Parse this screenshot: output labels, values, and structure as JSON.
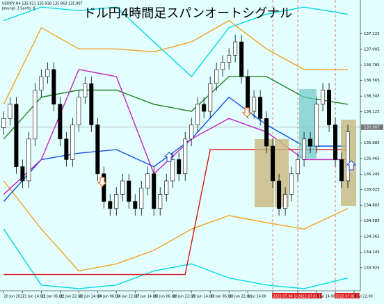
{
  "chart_data": {
    "type": "candlestick",
    "title": "ドル円4時間足スパンオートシグナル",
    "header_lines": [
      "USDJPY,H4 135.911 135.938 135.863 135.907",
      "Jakungi: 3 SanYo: 8"
    ],
    "background": "#e4ffff",
    "up_color": "#ffffff",
    "down_color": "#000000",
    "xlim": [
      -0.6,
      57
    ],
    "ylim": [
      133.6,
      137.7
    ],
    "yticks": [
      137.225,
      137.005,
      136.785,
      136.565,
      136.345,
      136.125,
      135.685,
      135.465,
      135.245,
      135.025,
      134.805,
      134.585,
      134.365,
      134.145,
      133.925
    ],
    "current_price": 135.907,
    "xticks": [
      {
        "value": 0,
        "label": "20 Jun 2022"
      },
      {
        "value": 3,
        "label": "21 Jun 14:00"
      },
      {
        "value": 6,
        "label": "22 Jun 06:00"
      },
      {
        "value": 9,
        "label": "22 Jun 22:00"
      },
      {
        "value": 12,
        "label": "23 Jun 14:00"
      },
      {
        "value": 15,
        "label": "24 Jun 06:00"
      },
      {
        "value": 18,
        "label": "24 Jun 22:00"
      },
      {
        "value": 21,
        "label": "27 Jun 14:00"
      },
      {
        "value": 24,
        "label": "28 Jun 06:00"
      },
      {
        "value": 27,
        "label": "28 Jun 22:00"
      },
      {
        "value": 30,
        "label": "29 Jun 14:00"
      },
      {
        "value": 33,
        "label": "30 Jun 06:00"
      },
      {
        "value": 36,
        "label": "30 Jun 22:00"
      },
      {
        "value": 39,
        "label": "1 Jul 14:00"
      },
      {
        "value": 43,
        "label": "2022.07.04 14:00",
        "highlight": true
      },
      {
        "value": 47,
        "label": "2022.07.05 18:00",
        "highlight": true
      },
      {
        "value": 50,
        "label": "5 Jul 14:00"
      },
      {
        "value": 53,
        "label": "2022.07.06 18:00",
        "highlight": true
      },
      {
        "value": 56,
        "label": "6 Jul 22:00"
      }
    ],
    "open": [
      135.9,
      136.03,
      136.23,
      135.35,
      135.15,
      135.74,
      136.43,
      136.62,
      136.72,
      136.23,
      135.74,
      135.45,
      135.94,
      136.33,
      136.52,
      135.94,
      135.25,
      134.86,
      134.76,
      134.96,
      135.15,
      134.86,
      134.76,
      135.05,
      135.25,
      134.76,
      134.96,
      135.15,
      135.45,
      135.25,
      135.74,
      135.94,
      136.23,
      136.13,
      136.52,
      136.72,
      136.82,
      136.92,
      137.11,
      136.62,
      136.13,
      136.33,
      136.03,
      135.64,
      135.15,
      134.76,
      134.96,
      135.25,
      135.45,
      135.74,
      135.64,
      136.23,
      136.43,
      135.94,
      135.45,
      135.15
    ],
    "high": [
      136.13,
      136.33,
      136.33,
      135.45,
      135.84,
      136.53,
      136.72,
      136.82,
      136.82,
      136.33,
      135.84,
      136.04,
      136.43,
      136.62,
      136.62,
      136.04,
      135.35,
      134.96,
      135.06,
      135.25,
      135.25,
      134.96,
      135.15,
      135.35,
      135.35,
      135.06,
      135.25,
      135.55,
      135.55,
      135.84,
      136.04,
      136.33,
      136.33,
      136.62,
      136.82,
      136.92,
      137.02,
      137.21,
      137.21,
      136.72,
      136.43,
      136.43,
      136.13,
      135.74,
      135.25,
      135.06,
      135.35,
      135.55,
      135.84,
      135.84,
      136.33,
      136.53,
      136.53,
      136.04,
      135.55,
      135.94
    ],
    "low": [
      135.8,
      135.93,
      135.25,
      135.05,
      135.05,
      135.64,
      136.33,
      136.52,
      136.13,
      135.64,
      135.35,
      135.35,
      135.84,
      136.23,
      135.84,
      135.15,
      134.76,
      134.66,
      134.66,
      134.86,
      134.76,
      134.66,
      134.66,
      134.95,
      134.66,
      134.66,
      134.86,
      135.05,
      135.15,
      135.15,
      135.64,
      135.84,
      136.03,
      136.03,
      136.42,
      136.62,
      136.72,
      136.82,
      136.52,
      136.03,
      136.03,
      135.93,
      135.54,
      135.05,
      134.66,
      134.66,
      134.86,
      135.15,
      135.35,
      135.54,
      135.54,
      136.13,
      135.84,
      135.35,
      135.05,
      135.05
    ],
    "close": [
      136.03,
      136.23,
      135.35,
      135.15,
      135.74,
      136.43,
      136.62,
      136.72,
      136.23,
      135.74,
      135.45,
      135.94,
      136.33,
      136.52,
      135.94,
      135.25,
      134.86,
      134.76,
      134.96,
      135.15,
      134.86,
      134.76,
      135.05,
      135.25,
      134.76,
      134.96,
      135.15,
      135.45,
      135.25,
      135.74,
      135.94,
      136.23,
      136.13,
      136.52,
      136.72,
      136.82,
      136.92,
      137.11,
      136.62,
      136.13,
      136.33,
      136.03,
      135.64,
      135.15,
      134.76,
      134.96,
      135.25,
      135.45,
      135.74,
      135.64,
      136.23,
      136.43,
      135.94,
      135.45,
      135.15,
      135.84
    ],
    "overlays": [
      {
        "color": "#00d8e8",
        "x": [
          0,
          6,
          12,
          18,
          24,
          30,
          36,
          42,
          48,
          55
        ],
        "values": [
          137.41,
          137.6,
          137.55,
          137.6,
          137.11,
          136.62,
          137.31,
          137.5,
          137.6,
          137.5
        ]
      },
      {
        "color": "#00d8e8",
        "x": [
          0,
          6,
          12,
          18,
          24,
          30,
          36,
          42,
          48,
          55
        ],
        "values": [
          134.47,
          133.68,
          133.63,
          133.68,
          133.88,
          133.98,
          133.78,
          133.68,
          133.63,
          133.78
        ]
      },
      {
        "color": "#f0a020",
        "x": [
          0,
          6,
          12,
          18,
          24,
          30,
          36,
          42,
          48,
          55
        ],
        "values": [
          136.23,
          137.31,
          137.01,
          137.01,
          136.97,
          137.11,
          137.41,
          137.01,
          136.72,
          136.72
        ]
      },
      {
        "color": "#f0a020",
        "x": [
          0,
          6,
          12,
          18,
          24,
          30,
          36,
          42,
          48,
          55
        ],
        "values": [
          135.15,
          134.47,
          133.88,
          133.98,
          134.17,
          134.47,
          134.66,
          134.56,
          134.47,
          134.76
        ]
      },
      {
        "color": "#208020",
        "x": [
          0,
          6,
          12,
          18,
          24,
          30,
          36,
          42,
          48,
          55
        ],
        "values": [
          135.74,
          136.33,
          136.43,
          136.43,
          136.23,
          136.13,
          136.62,
          136.62,
          136.33,
          136.23
        ]
      },
      {
        "color": "#1050e0",
        "x": [
          0,
          6,
          12,
          18,
          24,
          30,
          36,
          42,
          48,
          55
        ],
        "values": [
          134.86,
          135.45,
          135.54,
          135.59,
          135.35,
          135.74,
          136.33,
          135.94,
          135.64,
          135.64
        ]
      },
      {
        "color": "#c020c0",
        "x": [
          0,
          6,
          12,
          18,
          24,
          30,
          36,
          42,
          48,
          55
        ],
        "values": [
          134.96,
          135.45,
          136.72,
          136.62,
          135.25,
          135.74,
          136.03,
          135.84,
          135.45,
          135.45
        ]
      },
      {
        "color": "#e01010",
        "x": [
          0,
          29,
          33,
          55
        ],
        "values": [
          133.83,
          133.83,
          135.59,
          135.59
        ]
      }
    ]
  }
}
